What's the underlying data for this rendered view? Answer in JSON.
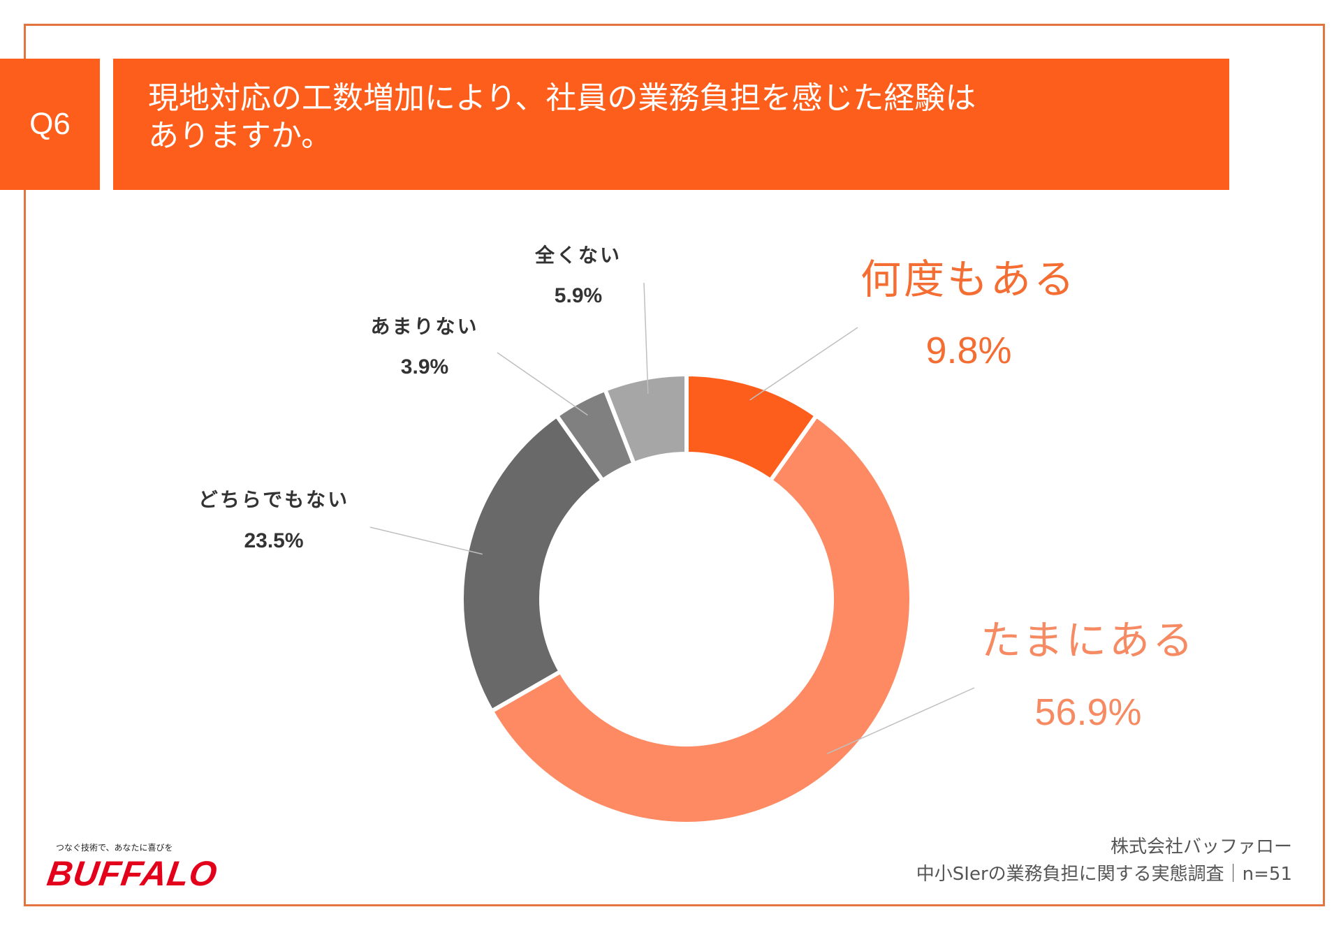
{
  "header": {
    "badge": "Q6",
    "question_line1": "現地対応の工数増加により、社員の業務負担を感じた経験は",
    "question_line2": "ありますか。"
  },
  "chart_data": {
    "type": "pie",
    "style": "donut",
    "slices": [
      {
        "label": "何度もある",
        "value": 9.8,
        "value_label": "9.8%",
        "color": "#fe5e1c",
        "label_color": "#f46d32"
      },
      {
        "label": "たまにある",
        "value": 56.9,
        "value_label": "56.9%",
        "color": "#fe8a63",
        "label_color": "#f68b63"
      },
      {
        "label": "どちらでもない",
        "value": 23.5,
        "value_label": "23.5%",
        "color": "#696969",
        "label_color": "#333333"
      },
      {
        "label": "あまりない",
        "value": 3.9,
        "value_label": "3.9%",
        "color": "#808080",
        "label_color": "#333333"
      },
      {
        "label": "全くない",
        "value": 5.9,
        "value_label": "5.9%",
        "color": "#a6a6a6",
        "label_color": "#333333"
      }
    ]
  },
  "footer": {
    "tagline": "つなぐ技術で、あなたに喜びを",
    "logo": "BUFFALO",
    "company": "株式会社バッファロー",
    "survey": "中小SIerの業務負担に関する実態調査｜n=51"
  }
}
